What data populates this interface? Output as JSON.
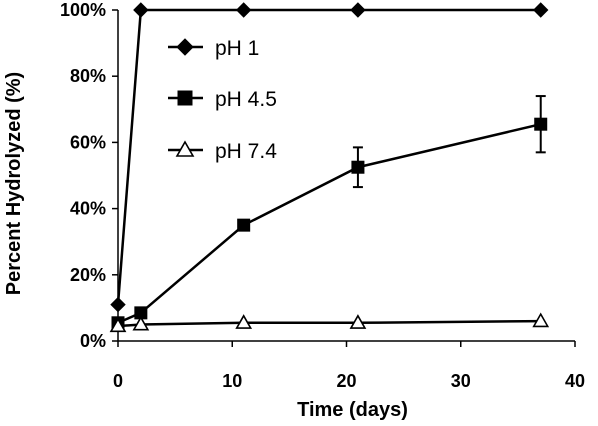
{
  "chart_data": {
    "type": "line",
    "xlabel": "Time (days)",
    "ylabel": "Percent Hydrolyzed (%)",
    "xlim": [
      0,
      40
    ],
    "ylim": [
      0,
      100
    ],
    "x_ticks": [
      0,
      10,
      20,
      30,
      40
    ],
    "x_tick_labels": [
      "0",
      "10",
      "20",
      "30",
      "40"
    ],
    "y_ticks": [
      0,
      20,
      40,
      60,
      80,
      100
    ],
    "y_tick_labels": [
      "0%",
      "20%",
      "40%",
      "60%",
      "80%",
      "100%"
    ],
    "grid": false,
    "legend_position": "top-left",
    "series": [
      {
        "name": "pH 1",
        "marker": "diamond",
        "x": [
          0,
          2,
          11,
          21,
          37
        ],
        "y": [
          11,
          100,
          100,
          100,
          100
        ],
        "error": [
          0,
          0,
          0,
          0,
          0
        ]
      },
      {
        "name": "pH 4.5",
        "marker": "square",
        "x": [
          0,
          2,
          11,
          21,
          37
        ],
        "y": [
          5.5,
          8.5,
          35,
          52.5,
          65.5
        ],
        "error": [
          0,
          0,
          0,
          6,
          8.5
        ]
      },
      {
        "name": "pH 7.4",
        "marker": "triangle-open",
        "x": [
          0,
          2,
          11,
          21,
          37
        ],
        "y": [
          4.5,
          5,
          5.5,
          5.5,
          6
        ],
        "error": [
          0,
          0,
          0,
          0,
          0
        ]
      }
    ]
  }
}
